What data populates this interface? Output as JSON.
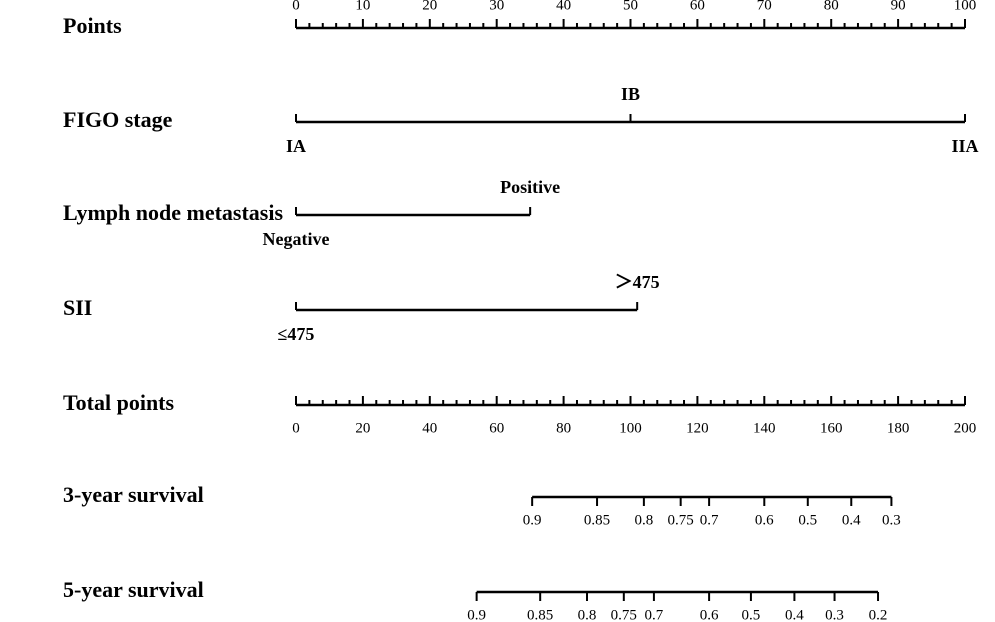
{
  "chart_data": {
    "type": "nomogram",
    "rows": [
      {
        "label": "Points",
        "xlim": [
          0,
          100
        ],
        "ticks": [
          0,
          10,
          20,
          30,
          40,
          50,
          60,
          70,
          80,
          90,
          100
        ],
        "minor_ticks": [
          2,
          4,
          6,
          8,
          12,
          14,
          16,
          18,
          22,
          24,
          26,
          28,
          32,
          34,
          36,
          38,
          42,
          44,
          46,
          48,
          52,
          54,
          56,
          58,
          62,
          64,
          66,
          68,
          72,
          74,
          76,
          78,
          82,
          84,
          86,
          88,
          92,
          94,
          96,
          98
        ]
      },
      {
        "label": "FIGO stage",
        "xlim": [
          0,
          100
        ],
        "levels": [
          "IA",
          "IB",
          "IIA"
        ],
        "values": [
          0,
          50,
          100
        ]
      },
      {
        "label": "Lymph node metastasis",
        "xlim": [
          0,
          100
        ],
        "levels": [
          "Negative",
          "Positive"
        ],
        "values": [
          0,
          35
        ]
      },
      {
        "label": "SII",
        "xlim": [
          0,
          100
        ],
        "levels": [
          "≤475",
          "＞475"
        ],
        "values": [
          0,
          51
        ]
      },
      {
        "label": "Total points",
        "xlim": [
          0,
          200
        ],
        "ticks": [
          0,
          20,
          40,
          60,
          80,
          100,
          120,
          140,
          160,
          180,
          200
        ],
        "minor_ticks": [
          4,
          8,
          12,
          16,
          24,
          28,
          32,
          36,
          44,
          48,
          52,
          56,
          64,
          68,
          72,
          76,
          84,
          88,
          92,
          96,
          104,
          108,
          112,
          116,
          124,
          128,
          132,
          136,
          144,
          148,
          152,
          156,
          164,
          168,
          172,
          176,
          184,
          188,
          192,
          196
        ]
      },
      {
        "label": "3-year survival",
        "xlim": [
          0,
          200
        ],
        "ticks": [
          {
            "value": 70.6,
            "label": "0.9"
          },
          {
            "value": 90,
            "label": "0.85"
          },
          {
            "value": 104,
            "label": "0.8"
          },
          {
            "value": 115,
            "label": "0.75"
          },
          {
            "value": 123.5,
            "label": "0.7"
          },
          {
            "value": 140,
            "label": "0.6"
          },
          {
            "value": 153,
            "label": "0.5"
          },
          {
            "value": 166,
            "label": "0.4"
          },
          {
            "value": 178,
            "label": "0.3"
          }
        ]
      },
      {
        "label": "5-year survival",
        "xlim": [
          0,
          200
        ],
        "ticks": [
          {
            "value": 54,
            "label": "0.9"
          },
          {
            "value": 73,
            "label": "0.85"
          },
          {
            "value": 87,
            "label": "0.8"
          },
          {
            "value": 98,
            "label": "0.75"
          },
          {
            "value": 107,
            "label": "0.7"
          },
          {
            "value": 123.5,
            "label": "0.6"
          },
          {
            "value": 136,
            "label": "0.5"
          },
          {
            "value": 149,
            "label": "0.4"
          },
          {
            "value": 161,
            "label": "0.3"
          },
          {
            "value": 174,
            "label": "0.2"
          }
        ]
      }
    ]
  }
}
